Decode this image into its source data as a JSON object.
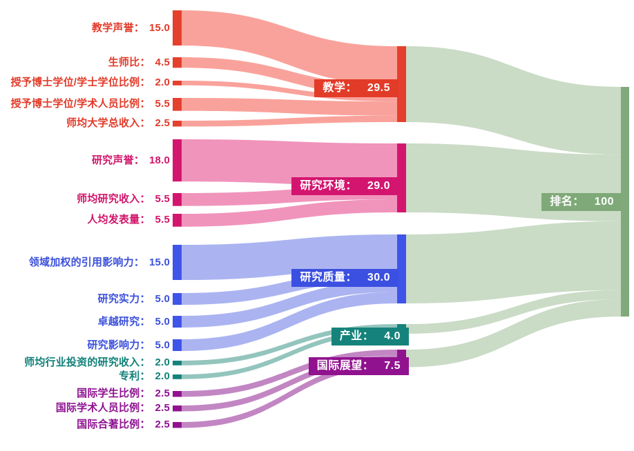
{
  "chart_data": {
    "type": "sankey",
    "title": "",
    "direction": "left-to-right",
    "background": "#ffffff",
    "groups": [
      {
        "id": "teaching",
        "label": "教学",
        "value": 29.5,
        "display": "29.5",
        "node_color": "#e5402d",
        "box_color": "#e23b28",
        "flow_color": "#f9a29b",
        "text_color": "#e23a28"
      },
      {
        "id": "research_env",
        "label": "研究环境",
        "value": 29.0,
        "display": "29.0",
        "node_color": "#d4156f",
        "box_color": "#d4156f",
        "flow_color": "#f094bc",
        "text_color": "#d1146a"
      },
      {
        "id": "research_quality",
        "label": "研究质量",
        "value": 30.0,
        "display": "30.0",
        "node_color": "#3f54e8",
        "box_color": "#3b4fe0",
        "flow_color": "#abb4f1",
        "text_color": "#3b50db"
      },
      {
        "id": "industry",
        "label": "产业",
        "value": 4.0,
        "display": "4.0",
        "node_color": "#15837b",
        "box_color": "#15837b",
        "flow_color": "#93c5bd",
        "text_color": "#0f8078"
      },
      {
        "id": "intl_outlook",
        "label": "国际展望",
        "value": 7.5,
        "display": "7.5",
        "node_color": "#91128f",
        "box_color": "#91128f",
        "flow_color": "#c286c3",
        "text_color": "#8d1190"
      }
    ],
    "sources": [
      {
        "id": "t_rep",
        "label": "教学声誉",
        "value": 15.0,
        "display": "15.0",
        "group": "teaching"
      },
      {
        "id": "t_ratio",
        "label": "生师比",
        "value": 4.5,
        "display": "4.5",
        "group": "teaching"
      },
      {
        "id": "t_db",
        "label": "授予博士学位/学士学位比例",
        "value": 2.0,
        "display": "2.0",
        "group": "teaching"
      },
      {
        "id": "t_ds",
        "label": "授予博士学位/学术人员比例",
        "value": 5.5,
        "display": "5.5",
        "group": "teaching"
      },
      {
        "id": "t_inc",
        "label": "师均大学总收入",
        "value": 2.5,
        "display": "2.5",
        "group": "teaching"
      },
      {
        "id": "r_rep",
        "label": "研究声誉",
        "value": 18.0,
        "display": "18.0",
        "group": "research_env"
      },
      {
        "id": "r_inc",
        "label": "师均研究收入",
        "value": 5.5,
        "display": "5.5",
        "group": "research_env"
      },
      {
        "id": "r_pub",
        "label": "人均发表量",
        "value": 5.5,
        "display": "5.5",
        "group": "research_env"
      },
      {
        "id": "q_cit",
        "label": "领域加权的引用影响力",
        "value": 15.0,
        "display": "15.0",
        "group": "research_quality"
      },
      {
        "id": "q_str",
        "label": "研究实力",
        "value": 5.0,
        "display": "5.0",
        "group": "research_quality"
      },
      {
        "id": "q_exc",
        "label": "卓越研究",
        "value": 5.0,
        "display": "5.0",
        "group": "research_quality"
      },
      {
        "id": "q_inf",
        "label": "研究影响力",
        "value": 5.0,
        "display": "5.0",
        "group": "research_quality"
      },
      {
        "id": "i_inc",
        "label": "师均行业投资的研究收入",
        "value": 2.0,
        "display": "2.0",
        "group": "industry"
      },
      {
        "id": "i_pat",
        "label": "专利",
        "value": 2.0,
        "display": "2.0",
        "group": "industry"
      },
      {
        "id": "o_stu",
        "label": "国际学生比例",
        "value": 2.5,
        "display": "2.5",
        "group": "intl_outlook"
      },
      {
        "id": "o_staff",
        "label": "国际学术人员比例",
        "value": 2.5,
        "display": "2.5",
        "group": "intl_outlook"
      },
      {
        "id": "o_co",
        "label": "国际合著比例",
        "value": 2.5,
        "display": "2.5",
        "group": "intl_outlook"
      }
    ],
    "target": {
      "id": "rank",
      "label": "排名",
      "value": 100,
      "display": "100",
      "node_color": "#82a97b",
      "box_color": "#7fa978",
      "flow_color": "#cadbc6"
    }
  }
}
